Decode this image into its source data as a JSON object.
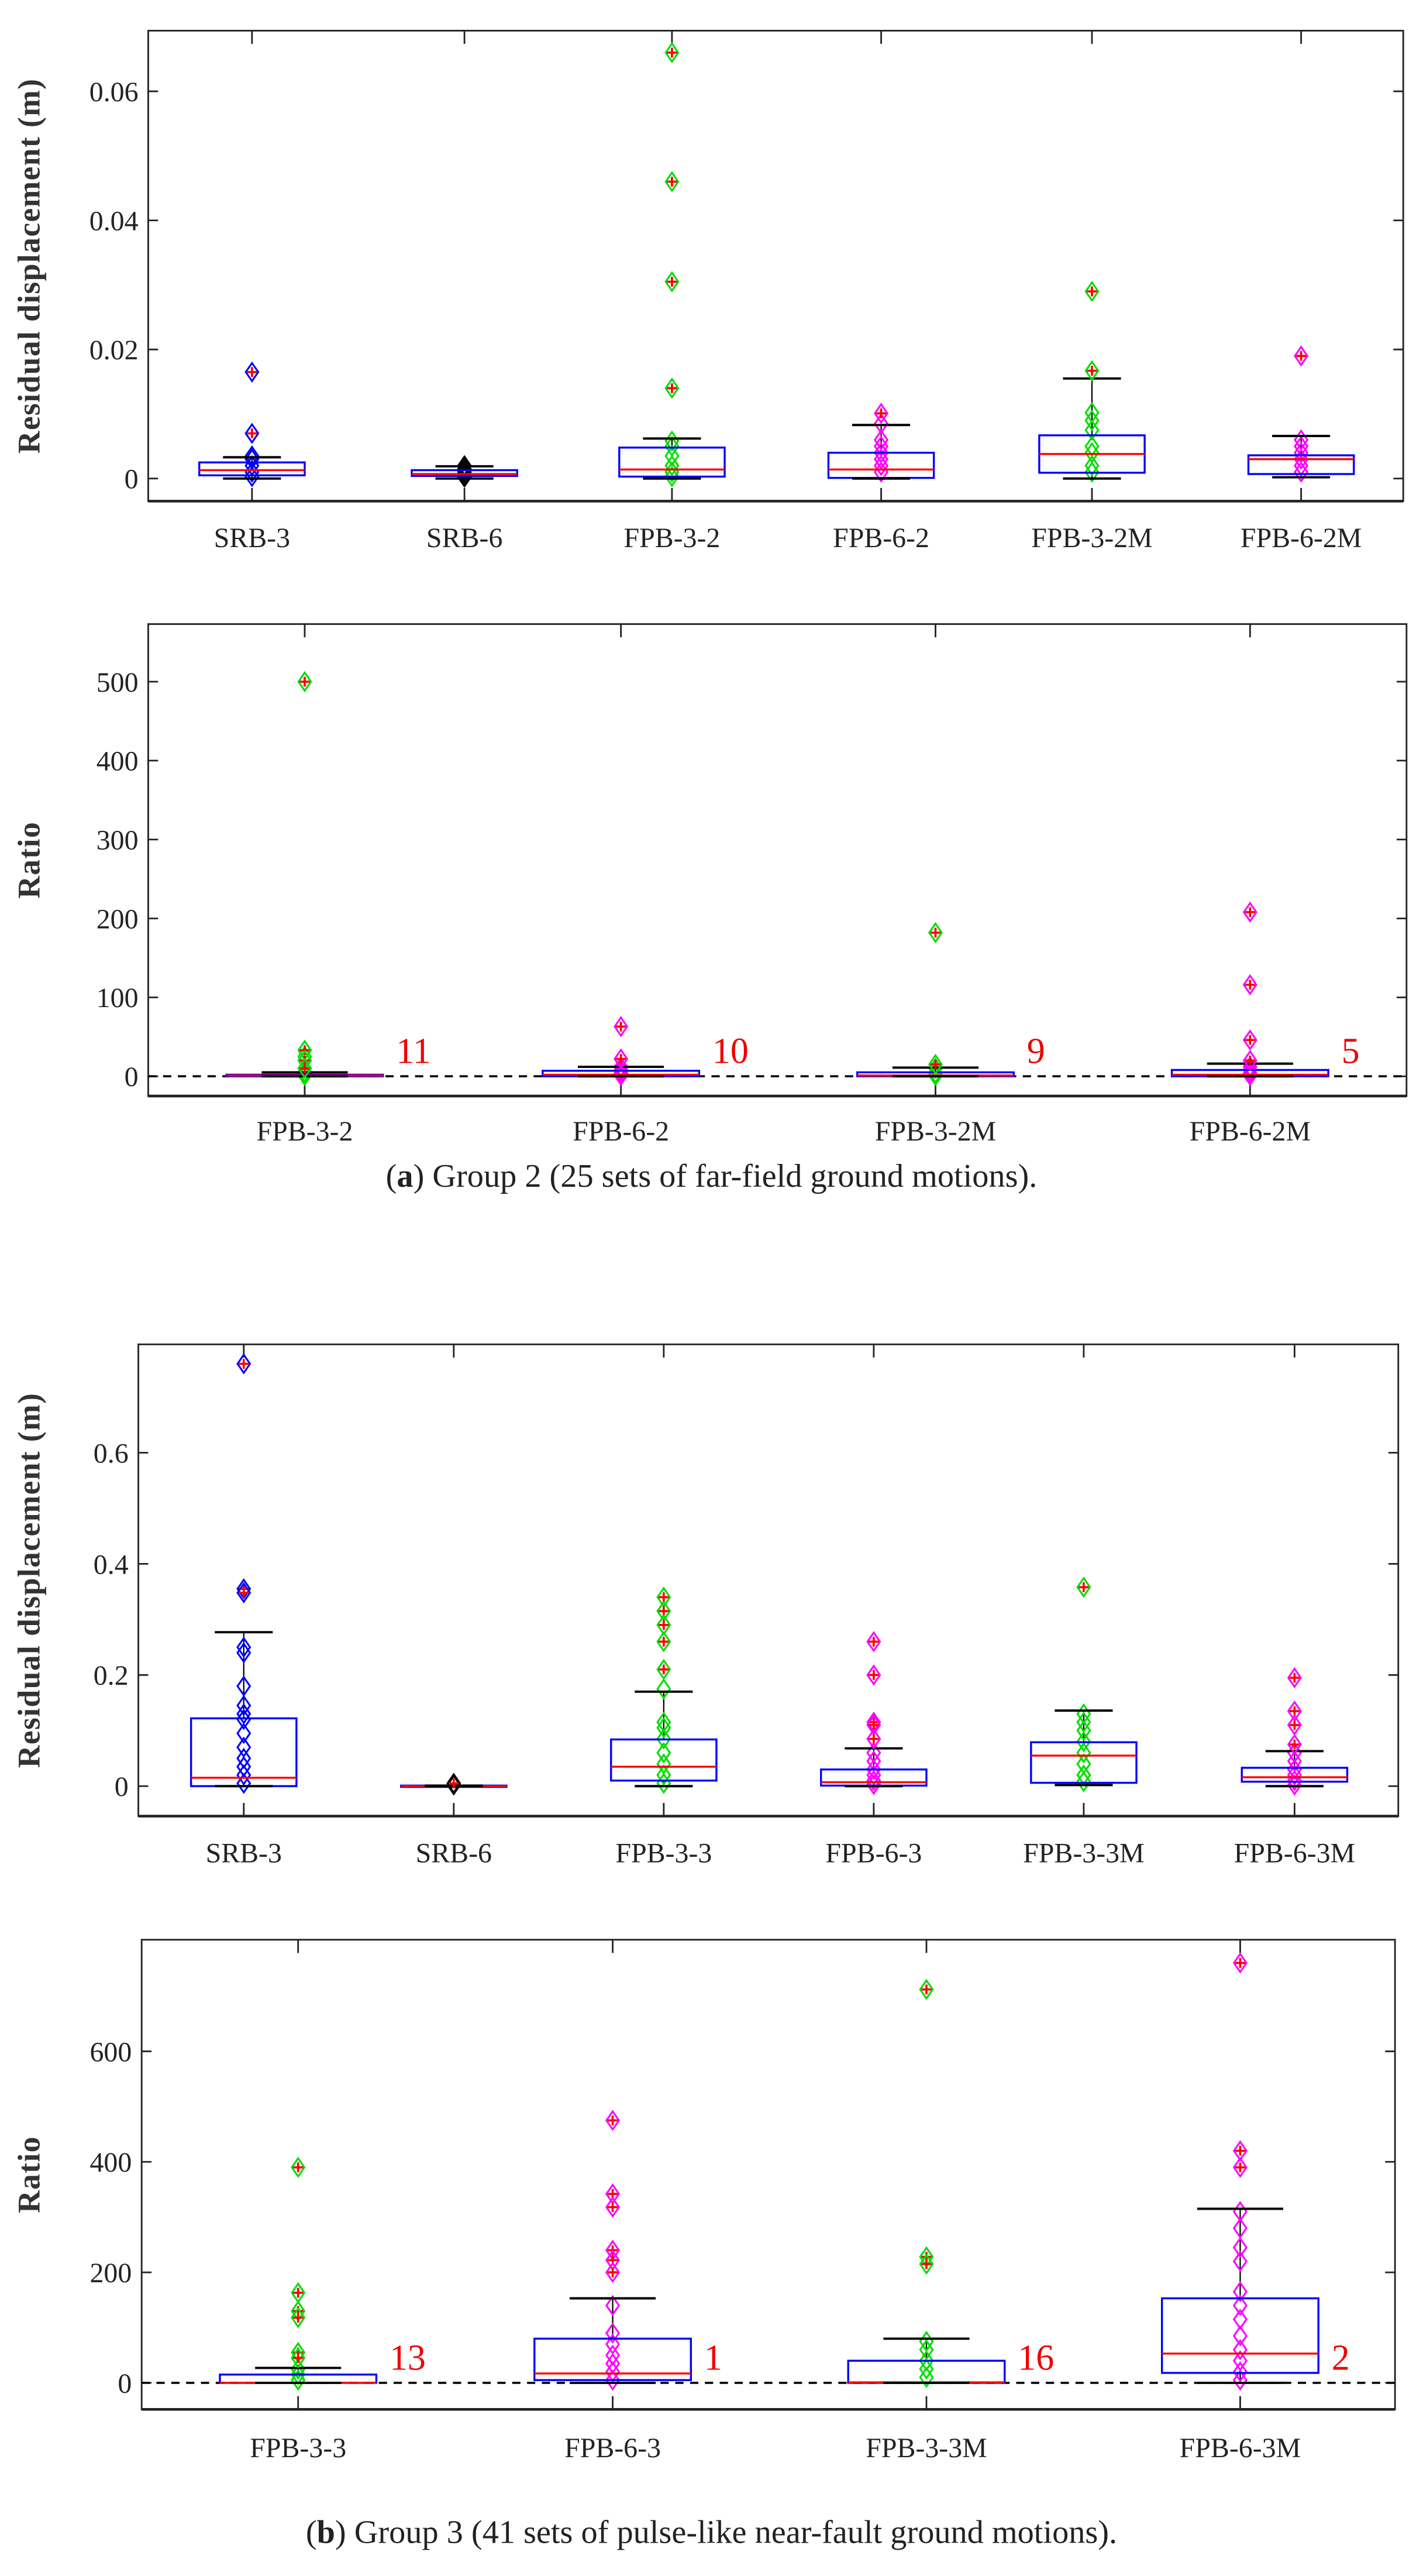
{
  "captions": {
    "a_letter": "a",
    "a_text": " Group 2 (25 sets of far-field ground motions).",
    "b_letter": "b",
    "b_text": " Group 3 (41 sets of pulse-like near-fault ground motions)."
  },
  "chart_data": [
    {
      "type": "box",
      "title": "",
      "ylabel": "Residual displacement (m)",
      "ylim": [
        -0.0035,
        0.0694
      ],
      "yticks": [
        0,
        0.02,
        0.04,
        0.06
      ],
      "ytick_labels": [
        "0",
        "0.02",
        "0.04",
        "0.06"
      ],
      "zero_line": false,
      "categories": [
        "SRB-3",
        "SRB-6",
        "FPB-3-2",
        "FPB-6-2",
        "FPB-3-2M",
        "FPB-6-2M"
      ],
      "boxes": [
        {
          "q1": 0.0005,
          "median": 0.0013,
          "q3": 0.0025,
          "whisker_low": 0,
          "whisker_high": 0.0033,
          "outliers": [
            0.0165,
            0.007
          ],
          "points": [
            0.001,
            0.002,
            0.003,
            0.0035,
            0.0003
          ],
          "color": "#0000ff"
        },
        {
          "q1": 0.0004,
          "median": 0.0007,
          "q3": 0.0013,
          "whisker_low": 0,
          "whisker_high": 0.0019,
          "outliers": [],
          "points": [
            0.0005,
            0.001,
            0.0015,
            0.002,
            0.0002
          ],
          "color": "#000000"
        },
        {
          "q1": 0.0003,
          "median": 0.0014,
          "q3": 0.0048,
          "whisker_low": 0,
          "whisker_high": 0.0062,
          "outliers": [
            0.066,
            0.046,
            0.0305,
            0.014
          ],
          "points": [
            0.001,
            0.002,
            0.0035,
            0.005,
            0.0058,
            0.0003
          ],
          "color": "#00dd00"
        },
        {
          "q1": 0.0001,
          "median": 0.0014,
          "q3": 0.004,
          "whisker_low": 0,
          "whisker_high": 0.0083,
          "outliers": [
            0.0101
          ],
          "points": [
            0.001,
            0.002,
            0.003,
            0.004,
            0.005,
            0.006,
            0.0085
          ],
          "color": "#ff00ff"
        },
        {
          "q1": 0.0009,
          "median": 0.0038,
          "q3": 0.0067,
          "whisker_low": 0,
          "whisker_high": 0.0155,
          "outliers": [
            0.029,
            0.0167
          ],
          "points": [
            0.001,
            0.002,
            0.004,
            0.005,
            0.0075,
            0.009,
            0.0102
          ],
          "color": "#00dd00"
        },
        {
          "q1": 0.0007,
          "median": 0.003,
          "q3": 0.0036,
          "whisker_low": 0.0002,
          "whisker_high": 0.0066,
          "outliers": [
            0.019
          ],
          "points": [
            0.001,
            0.002,
            0.003,
            0.004,
            0.005,
            0.006
          ],
          "color": "#ff00ff"
        }
      ]
    },
    {
      "type": "box",
      "title": "",
      "ylabel": "Ratio",
      "ylim": [
        -25,
        573
      ],
      "yticks": [
        0,
        100,
        200,
        300,
        400,
        500
      ],
      "ytick_labels": [
        "0",
        "100",
        "200",
        "300",
        "400",
        "500"
      ],
      "zero_line": true,
      "categories": [
        "FPB-3-2",
        "FPB-6-2",
        "FPB-3-2M",
        "FPB-6-2M"
      ],
      "boxes": [
        {
          "q1": 0,
          "median": 1,
          "q3": 2,
          "whisker_low": 0,
          "whisker_high": 5,
          "outliers": [
            500,
            33,
            20,
            10
          ],
          "points": [
            1,
            3,
            5,
            25
          ],
          "color": "#00dd00",
          "annotation": "11"
        },
        {
          "q1": 0,
          "median": 2,
          "q3": 7,
          "whisker_low": 0,
          "whisker_high": 12,
          "outliers": [
            63,
            22
          ],
          "points": [
            1,
            4,
            8,
            12
          ],
          "color": "#ff00ff",
          "annotation": "10"
        },
        {
          "q1": 0,
          "median": 1,
          "q3": 5,
          "whisker_low": 0,
          "whisker_high": 11,
          "outliers": [
            182,
            15
          ],
          "points": [
            1,
            4,
            10
          ],
          "color": "#00dd00",
          "annotation": "9"
        },
        {
          "q1": 0,
          "median": 2,
          "q3": 8,
          "whisker_low": 0,
          "whisker_high": 16,
          "outliers": [
            208,
            116,
            46,
            20
          ],
          "points": [
            1,
            4,
            8,
            12
          ],
          "color": "#ff00ff",
          "annotation": "5"
        }
      ]
    },
    {
      "type": "box",
      "title": "",
      "ylabel": "Residual displacement (m)",
      "ylim": [
        -0.054,
        0.795
      ],
      "yticks": [
        0,
        0.2,
        0.4,
        0.6
      ],
      "ytick_labels": [
        "0",
        "0.2",
        "0.4",
        "0.6"
      ],
      "zero_line": false,
      "categories": [
        "SRB-3",
        "SRB-6",
        "FPB-3-3",
        "FPB-6-3",
        "FPB-3-3M",
        "FPB-6-3M"
      ],
      "boxes": [
        {
          "q1": 0,
          "median": 0.015,
          "q3": 0.122,
          "whisker_low": 0,
          "whisker_high": 0.277,
          "outliers": [
            0.76,
            0.355,
            0.348
          ],
          "points": [
            0.25,
            0.24,
            0.18,
            0.145,
            0.13,
            0.12,
            0.095,
            0.07,
            0.05,
            0.035,
            0.02,
            0.005
          ],
          "color": "#0000ff"
        },
        {
          "q1": 0,
          "median": 0,
          "q3": 0.001,
          "whisker_low": 0,
          "whisker_high": 0.001,
          "outliers": [
            0.005
          ],
          "points": [
            0.002
          ],
          "color": "#000000"
        },
        {
          "q1": 0.01,
          "median": 0.035,
          "q3": 0.084,
          "whisker_low": 0,
          "whisker_high": 0.17,
          "outliers": [
            0.34,
            0.315,
            0.29,
            0.26,
            0.21
          ],
          "points": [
            0.175,
            0.115,
            0.105,
            0.085,
            0.06,
            0.04,
            0.02,
            0.005
          ],
          "color": "#00dd00"
        },
        {
          "q1": 0.001,
          "median": 0.007,
          "q3": 0.03,
          "whisker_low": 0,
          "whisker_high": 0.068,
          "outliers": [
            0.26,
            0.2,
            0.115,
            0.11,
            0.085
          ],
          "points": [
            0.06,
            0.045,
            0.03,
            0.02,
            0.01,
            0.003
          ],
          "color": "#ff00ff"
        },
        {
          "q1": 0.006,
          "median": 0.055,
          "q3": 0.079,
          "whisker_low": 0.002,
          "whisker_high": 0.136,
          "outliers": [
            0.358
          ],
          "points": [
            0.13,
            0.115,
            0.1,
            0.08,
            0.06,
            0.04,
            0.02,
            0.008
          ],
          "color": "#00dd00"
        },
        {
          "q1": 0.008,
          "median": 0.016,
          "q3": 0.033,
          "whisker_low": 0,
          "whisker_high": 0.063,
          "outliers": [
            0.195,
            0.135,
            0.11,
            0.075
          ],
          "points": [
            0.06,
            0.045,
            0.03,
            0.02,
            0.01,
            0.002
          ],
          "color": "#ff00ff"
        }
      ]
    },
    {
      "type": "box",
      "title": "",
      "ylabel": "Ratio",
      "ylim": [
        -48,
        802
      ],
      "yticks": [
        0,
        200,
        400,
        600
      ],
      "ytick_labels": [
        "0",
        "200",
        "400",
        "600"
      ],
      "zero_line": true,
      "categories": [
        "FPB-3-3",
        "FPB-6-3",
        "FPB-3-3M",
        "FPB-6-3M"
      ],
      "boxes": [
        {
          "q1": 0,
          "median": 0,
          "q3": 15,
          "whisker_low": 0,
          "whisker_high": 27,
          "outliers": [
            390,
            163,
            130,
            118,
            55,
            45
          ],
          "points": [
            5,
            15,
            25
          ],
          "color": "#00dd00",
          "annotation": "13"
        },
        {
          "q1": 5,
          "median": 17,
          "q3": 80,
          "whisker_low": 0,
          "whisker_high": 153,
          "outliers": [
            475,
            342,
            318,
            240,
            222,
            200
          ],
          "points": [
            140,
            90,
            70,
            50,
            35,
            20,
            5
          ],
          "color": "#ff00ff",
          "annotation": "1"
        },
        {
          "q1": 0,
          "median": 1,
          "q3": 40,
          "whisker_low": 0,
          "whisker_high": 80,
          "outliers": [
            712,
            228,
            215
          ],
          "points": [
            75,
            60,
            40,
            25,
            10
          ],
          "color": "#00dd00",
          "annotation": "16"
        },
        {
          "q1": 18,
          "median": 53,
          "q3": 153,
          "whisker_low": 0,
          "whisker_high": 315,
          "outliers": [
            760,
            420,
            390
          ],
          "points": [
            310,
            280,
            245,
            220,
            165,
            140,
            115,
            85,
            60,
            40,
            20,
            5
          ],
          "color": "#ff00ff",
          "annotation": "2"
        }
      ]
    }
  ]
}
